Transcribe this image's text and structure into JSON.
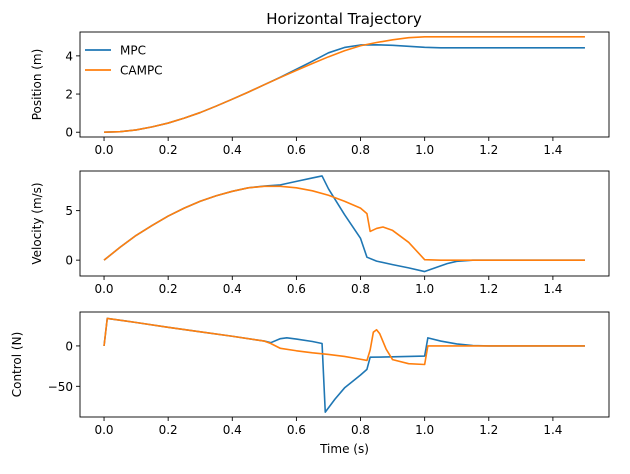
{
  "title": "Horizontal Trajectory",
  "colors": {
    "MPC": "#1f77b4",
    "CAMPC": "#ff7f0e"
  },
  "legend": {
    "location": "top-left",
    "entries": [
      "MPC",
      "CAMPC"
    ]
  },
  "chart_data": [
    {
      "type": "line",
      "title": "Horizontal Trajectory",
      "xlabel": "",
      "ylabel": "Position (m)",
      "xlim": [
        -0.075,
        1.575
      ],
      "ylim": [
        -0.25,
        5.25
      ],
      "xticks": [
        "0.0",
        "0.2",
        "0.4",
        "0.6",
        "0.8",
        "1.0",
        "1.2",
        "1.4"
      ],
      "xtick_values": [
        0,
        0.2,
        0.4,
        0.6,
        0.8,
        1.0,
        1.2,
        1.4
      ],
      "yticks": [
        "0",
        "2",
        "4"
      ],
      "ytick_values": [
        0,
        2,
        4
      ],
      "grid": false,
      "legend": "top-left",
      "series": [
        {
          "name": "MPC",
          "points": [
            [
              0,
              0
            ],
            [
              0.05,
              0.03
            ],
            [
              0.1,
              0.12
            ],
            [
              0.15,
              0.28
            ],
            [
              0.2,
              0.48
            ],
            [
              0.25,
              0.74
            ],
            [
              0.3,
              1.03
            ],
            [
              0.35,
              1.37
            ],
            [
              0.4,
              1.73
            ],
            [
              0.45,
              2.1
            ],
            [
              0.5,
              2.49
            ],
            [
              0.55,
              2.88
            ],
            [
              0.6,
              3.3
            ],
            [
              0.65,
              3.72
            ],
            [
              0.7,
              4.16
            ],
            [
              0.75,
              4.44
            ],
            [
              0.8,
              4.57
            ],
            [
              0.85,
              4.58
            ],
            [
              0.9,
              4.55
            ],
            [
              0.95,
              4.5
            ],
            [
              1.0,
              4.45
            ],
            [
              1.05,
              4.42
            ],
            [
              1.1,
              4.42
            ],
            [
              1.2,
              4.42
            ],
            [
              1.3,
              4.42
            ],
            [
              1.4,
              4.42
            ],
            [
              1.5,
              4.42
            ]
          ]
        },
        {
          "name": "CAMPC",
          "points": [
            [
              0,
              0
            ],
            [
              0.05,
              0.03
            ],
            [
              0.1,
              0.12
            ],
            [
              0.15,
              0.28
            ],
            [
              0.2,
              0.48
            ],
            [
              0.25,
              0.74
            ],
            [
              0.3,
              1.03
            ],
            [
              0.35,
              1.37
            ],
            [
              0.4,
              1.73
            ],
            [
              0.45,
              2.1
            ],
            [
              0.5,
              2.49
            ],
            [
              0.55,
              2.87
            ],
            [
              0.6,
              3.24
            ],
            [
              0.65,
              3.6
            ],
            [
              0.7,
              3.95
            ],
            [
              0.75,
              4.27
            ],
            [
              0.8,
              4.53
            ],
            [
              0.85,
              4.7
            ],
            [
              0.9,
              4.84
            ],
            [
              0.95,
              4.95
            ],
            [
              1.0,
              5.0
            ],
            [
              1.1,
              5.0
            ],
            [
              1.2,
              5.0
            ],
            [
              1.3,
              5.0
            ],
            [
              1.4,
              5.0
            ],
            [
              1.5,
              5.0
            ]
          ]
        }
      ]
    },
    {
      "type": "line",
      "title": "",
      "xlabel": "",
      "ylabel": "Velocity (m/s)",
      "xlim": [
        -0.075,
        1.575
      ],
      "ylim": [
        -1.6,
        9.0
      ],
      "xticks": [
        "0.0",
        "0.2",
        "0.4",
        "0.6",
        "0.8",
        "1.0",
        "1.2",
        "1.4"
      ],
      "xtick_values": [
        0,
        0.2,
        0.4,
        0.6,
        0.8,
        1.0,
        1.2,
        1.4
      ],
      "yticks": [
        "0",
        "5"
      ],
      "ytick_values": [
        0,
        5
      ],
      "grid": false,
      "series": [
        {
          "name": "MPC",
          "points": [
            [
              0,
              0
            ],
            [
              0.05,
              1.3
            ],
            [
              0.1,
              2.5
            ],
            [
              0.15,
              3.5
            ],
            [
              0.2,
              4.45
            ],
            [
              0.25,
              5.25
            ],
            [
              0.3,
              5.95
            ],
            [
              0.35,
              6.5
            ],
            [
              0.4,
              6.95
            ],
            [
              0.45,
              7.3
            ],
            [
              0.5,
              7.48
            ],
            [
              0.55,
              7.6
            ],
            [
              0.6,
              7.95
            ],
            [
              0.65,
              8.3
            ],
            [
              0.68,
              8.5
            ],
            [
              0.7,
              7.2
            ],
            [
              0.75,
              4.6
            ],
            [
              0.8,
              2.2
            ],
            [
              0.82,
              0.3
            ],
            [
              0.85,
              -0.1
            ],
            [
              0.9,
              -0.45
            ],
            [
              0.95,
              -0.78
            ],
            [
              1.0,
              -1.15
            ],
            [
              1.03,
              -0.8
            ],
            [
              1.07,
              -0.35
            ],
            [
              1.1,
              -0.12
            ],
            [
              1.15,
              0
            ],
            [
              1.2,
              0
            ],
            [
              1.3,
              0
            ],
            [
              1.4,
              0
            ],
            [
              1.5,
              0
            ]
          ]
        },
        {
          "name": "CAMPC",
          "points": [
            [
              0,
              0
            ],
            [
              0.05,
              1.3
            ],
            [
              0.1,
              2.5
            ],
            [
              0.15,
              3.5
            ],
            [
              0.2,
              4.45
            ],
            [
              0.25,
              5.25
            ],
            [
              0.3,
              5.95
            ],
            [
              0.35,
              6.5
            ],
            [
              0.4,
              6.95
            ],
            [
              0.45,
              7.3
            ],
            [
              0.5,
              7.45
            ],
            [
              0.55,
              7.45
            ],
            [
              0.6,
              7.3
            ],
            [
              0.65,
              7.0
            ],
            [
              0.7,
              6.55
            ],
            [
              0.75,
              5.95
            ],
            [
              0.8,
              5.25
            ],
            [
              0.82,
              4.7
            ],
            [
              0.83,
              2.9
            ],
            [
              0.85,
              3.2
            ],
            [
              0.87,
              3.35
            ],
            [
              0.9,
              3.0
            ],
            [
              0.95,
              1.8
            ],
            [
              1.0,
              0.05
            ],
            [
              1.05,
              0
            ],
            [
              1.2,
              0
            ],
            [
              1.3,
              0
            ],
            [
              1.4,
              0
            ],
            [
              1.5,
              0
            ]
          ]
        }
      ]
    },
    {
      "type": "line",
      "title": "",
      "xlabel": "Time (s)",
      "ylabel": "Control (N)",
      "xlim": [
        -0.075,
        1.575
      ],
      "ylim": [
        -88,
        42
      ],
      "xticks": [
        "0.0",
        "0.2",
        "0.4",
        "0.6",
        "0.8",
        "1.0",
        "1.2",
        "1.4"
      ],
      "xtick_values": [
        0,
        0.2,
        0.4,
        0.6,
        0.8,
        1.0,
        1.2,
        1.4
      ],
      "yticks": [
        "0",
        "−50"
      ],
      "ytick_values": [
        0,
        -50
      ],
      "grid": false,
      "series": [
        {
          "name": "MPC",
          "points": [
            [
              0,
              0
            ],
            [
              0.01,
              34
            ],
            [
              0.1,
              29
            ],
            [
              0.2,
              23
            ],
            [
              0.3,
              17.5
            ],
            [
              0.4,
              12
            ],
            [
              0.5,
              6
            ],
            [
              0.52,
              4
            ],
            [
              0.55,
              9
            ],
            [
              0.57,
              10
            ],
            [
              0.6,
              8.5
            ],
            [
              0.65,
              5.5
            ],
            [
              0.68,
              3
            ],
            [
              0.69,
              -82
            ],
            [
              0.72,
              -66
            ],
            [
              0.75,
              -52
            ],
            [
              0.8,
              -36
            ],
            [
              0.82,
              -29
            ],
            [
              0.83,
              -14
            ],
            [
              0.9,
              -13.5
            ],
            [
              1.0,
              -12.5
            ],
            [
              1.01,
              10
            ],
            [
              1.05,
              6
            ],
            [
              1.1,
              2.5
            ],
            [
              1.15,
              0.5
            ],
            [
              1.2,
              0
            ],
            [
              1.3,
              0
            ],
            [
              1.4,
              0
            ],
            [
              1.5,
              0
            ]
          ]
        },
        {
          "name": "CAMPC",
          "points": [
            [
              0,
              0
            ],
            [
              0.01,
              34
            ],
            [
              0.1,
              29
            ],
            [
              0.2,
              23
            ],
            [
              0.3,
              17.5
            ],
            [
              0.4,
              12
            ],
            [
              0.5,
              6
            ],
            [
              0.52,
              3
            ],
            [
              0.55,
              -3
            ],
            [
              0.6,
              -6
            ],
            [
              0.65,
              -8.5
            ],
            [
              0.7,
              -10.5
            ],
            [
              0.75,
              -13
            ],
            [
              0.8,
              -16.5
            ],
            [
              0.82,
              -18
            ],
            [
              0.83,
              -5
            ],
            [
              0.84,
              17
            ],
            [
              0.85,
              20
            ],
            [
              0.86,
              15
            ],
            [
              0.88,
              -4
            ],
            [
              0.9,
              -17
            ],
            [
              0.95,
              -22
            ],
            [
              1.0,
              -23
            ],
            [
              1.01,
              0
            ],
            [
              1.05,
              0
            ],
            [
              1.1,
              0
            ],
            [
              1.2,
              0
            ],
            [
              1.3,
              0
            ],
            [
              1.4,
              0
            ],
            [
              1.5,
              0
            ]
          ]
        }
      ]
    }
  ]
}
